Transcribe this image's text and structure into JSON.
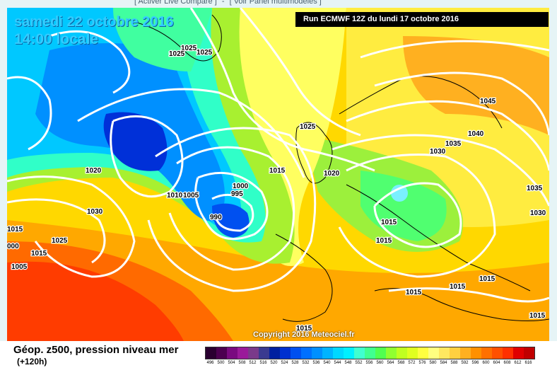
{
  "top_nav": {
    "left": "[ Activer Live Compare ]",
    "sep": "-",
    "right": "[ Voir Panel multimodèles ]"
  },
  "map": {
    "date_label": "samedi 22 octobre 2016",
    "time_label": "14:00 locale",
    "run_label": "Run ECMWF 12Z du lundi 17 octobre 2016",
    "copyright": "Copyright 2016 Meteociel.fr",
    "pressure_labels": [
      "1025",
      "1025",
      "1025",
      "1025",
      "1020",
      "1030",
      "1010",
      "1005",
      "1000",
      "995",
      "990",
      "1015",
      "1015",
      "1020",
      "1025",
      "1045",
      "1040",
      "1035",
      "1030",
      "1035",
      "1030",
      "1015",
      "1015",
      "1015",
      "1015",
      "1015",
      "1015",
      "1015",
      "1005",
      "000",
      "1015"
    ]
  },
  "legend": {
    "title": "Géop. z500, pression niveau mer",
    "subtitle": "(+120h)",
    "scale_colors": [
      "#2a0030",
      "#4c0050",
      "#7a0a80",
      "#9a1a9a",
      "#7a3a8a",
      "#3a3a90",
      "#0020a0",
      "#0030d0",
      "#0050f0",
      "#0070ff",
      "#0090ff",
      "#00b4ff",
      "#00d8ff",
      "#00f0ff",
      "#40ffd0",
      "#40ff90",
      "#50ff50",
      "#90ff30",
      "#c0ff20",
      "#e0ff20",
      "#ffff40",
      "#ffff80",
      "#ffe860",
      "#ffd040",
      "#ffb020",
      "#ff9000",
      "#ff7000",
      "#ff5000",
      "#ff3000",
      "#e00000",
      "#c00000",
      "#a00000",
      "#800000",
      "#600000",
      "#400000",
      "#000000"
    ],
    "scale_ticks": [
      "496",
      "500",
      "504",
      "508",
      "512",
      "516",
      "520",
      "524",
      "528",
      "532",
      "536",
      "540",
      "544",
      "548",
      "552",
      "556",
      "560",
      "564",
      "568",
      "572",
      "576",
      "580",
      "584",
      "588",
      "592",
      "596",
      "600",
      "604",
      "608",
      "612",
      "616"
    ]
  }
}
